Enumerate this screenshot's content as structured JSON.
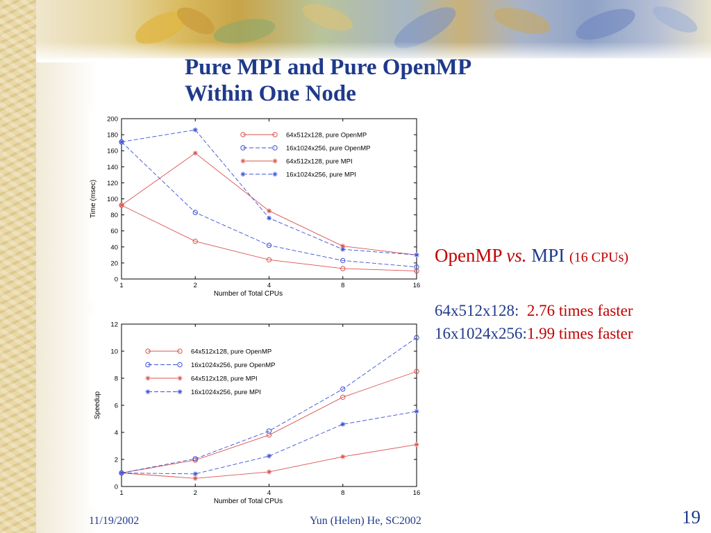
{
  "slide": {
    "title_line1": "Pure MPI and Pure OpenMP",
    "title_line2": "Within One Node",
    "comparison": {
      "openmp": "OpenMP",
      "vs": "vs.",
      "mpi": "MPI",
      "note": "(16 CPUs)"
    },
    "results": [
      {
        "size": "64x512x128:",
        "value": "2.76 times faster"
      },
      {
        "size": "16x1024x256:",
        "value": "1.99 times faster"
      }
    ],
    "footer": {
      "date": "11/19/2002",
      "author": "Yun (Helen) He, SC2002",
      "page": "19"
    }
  },
  "colors": {
    "title": "#1f3a8a",
    "accent_red": "#c00000",
    "series_red": "#d9534f",
    "series_blue": "#3a4fd6"
  },
  "chart_data": [
    {
      "type": "line",
      "x": [
        1,
        2,
        4,
        8,
        16
      ],
      "xscale": "log2",
      "xlabel": "Number of Total CPUs",
      "ylabel": "Time (msec)",
      "ylim": [
        0,
        200
      ],
      "yticks": [
        0,
        20,
        40,
        60,
        80,
        100,
        120,
        140,
        160,
        180,
        200
      ],
      "legend_position": "top-right",
      "series": [
        {
          "name": "64x512x128, pure OpenMP",
          "marker": "o",
          "style": "solid",
          "color": "#d9534f",
          "values": [
            92,
            47,
            24,
            13,
            10
          ]
        },
        {
          "name": "16x1024x256, pure OpenMP",
          "marker": "o",
          "style": "dashed",
          "color": "#3a4fd6",
          "values": [
            171,
            83,
            42,
            23,
            15
          ]
        },
        {
          "name": "64x512x128, pure MPI",
          "marker": "*",
          "style": "solid",
          "color": "#d9534f",
          "values": [
            92,
            157,
            85,
            41,
            30
          ]
        },
        {
          "name": "16x1024x256, pure MPI",
          "marker": "*",
          "style": "dashed",
          "color": "#3a4fd6",
          "values": [
            171,
            186,
            76,
            37,
            30
          ]
        }
      ]
    },
    {
      "type": "line",
      "x": [
        1,
        2,
        4,
        8,
        16
      ],
      "xscale": "log2",
      "xlabel": "Number of Total CPUs",
      "ylabel": "Speedup",
      "ylim": [
        0,
        12
      ],
      "yticks": [
        0,
        2,
        4,
        6,
        8,
        10,
        12
      ],
      "legend_position": "top-left",
      "series": [
        {
          "name": "64x512x128, pure OpenMP",
          "marker": "o",
          "style": "solid",
          "color": "#d9534f",
          "values": [
            1,
            1.95,
            3.8,
            6.6,
            8.5
          ]
        },
        {
          "name": "16x1024x256, pure OpenMP",
          "marker": "o",
          "style": "dashed",
          "color": "#3a4fd6",
          "values": [
            1,
            2.05,
            4.1,
            7.2,
            11
          ]
        },
        {
          "name": "64x512x128, pure MPI",
          "marker": "*",
          "style": "solid",
          "color": "#d9534f",
          "values": [
            1,
            0.6,
            1.08,
            2.2,
            3.1
          ]
        },
        {
          "name": "16x1024x256, pure MPI",
          "marker": "*",
          "style": "dashed",
          "color": "#3a4fd6",
          "values": [
            1,
            0.93,
            2.25,
            4.6,
            5.55
          ]
        }
      ]
    }
  ]
}
